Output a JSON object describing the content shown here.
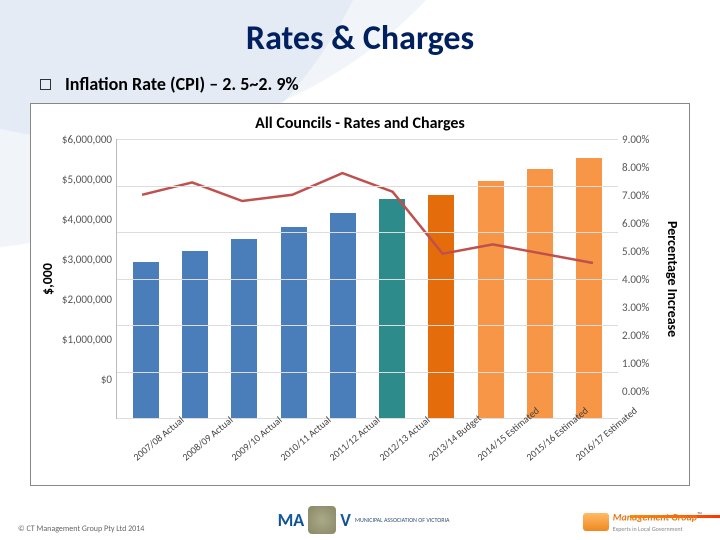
{
  "slide": {
    "title": "Rates & Charges",
    "bullet": "Inflation Rate (CPI) – 2. 5~2. 9%"
  },
  "chart": {
    "type": "bar+line",
    "title": "All Councils - Rates and Charges",
    "y_left": {
      "label": "$,000",
      "max": 6000000,
      "ticks": [
        "$6,000,000",
        "$5,000,000",
        "$4,000,000",
        "$3,000,000",
        "$2,000,000",
        "$1,000,000",
        "$0"
      ]
    },
    "y_right": {
      "label": "Percentage Increase",
      "max": 9,
      "ticks": [
        "9.00%",
        "8.00%",
        "7.00%",
        "6.00%",
        "5.00%",
        "4.00%",
        "3.00%",
        "2.00%",
        "1.00%",
        "0.00%"
      ]
    },
    "categories": [
      "2007/08 Actual",
      "2008/09 Actual",
      "2009/10 Actual",
      "2010/11 Actual",
      "2011/12 Actual",
      "2012/13 Actual",
      "2013/14 Budget",
      "2014/15 Estimated",
      "2015/16 Estimated",
      "2016/17 Estimated"
    ],
    "bars": {
      "values": [
        3350000,
        3600000,
        3850000,
        4100000,
        4400000,
        4700000,
        4800000,
        5100000,
        5350000,
        5600000
      ],
      "colors": [
        "#4a7ebb",
        "#4a7ebb",
        "#4a7ebb",
        "#4a7ebb",
        "#4a7ebb",
        "#2e8b8b",
        "#e46c0a",
        "#f79646",
        "#f79646",
        "#f79646"
      ]
    },
    "line": {
      "values": [
        7.2,
        7.6,
        7.0,
        7.2,
        7.9,
        7.3,
        5.3,
        5.6,
        5.3,
        5.0
      ],
      "color": "#c0504d",
      "width": 2.5
    },
    "grid_color": "#dddddd",
    "background": "#ffffff"
  },
  "footer": {
    "copyright": "© CT Management Group Pty Ltd 2014",
    "center_logo_sub": "MUNICIPAL ASSOCIATION OF VICTORIA",
    "right_logo_text": "Management Group",
    "right_logo_sub": "Experts in Local Government"
  }
}
